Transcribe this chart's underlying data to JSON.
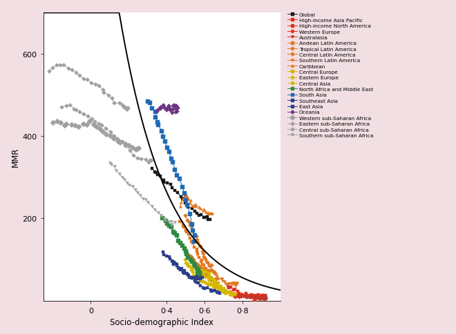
{
  "title": "",
  "xlabel": "Socio-demographic Index",
  "ylabel": "MMR",
  "xlim": [
    -0.25,
    1.0
  ],
  "ylim": [
    0,
    700
  ],
  "yticks": [
    200,
    400,
    600
  ],
  "xticks": [
    0.0,
    0.4,
    0.6,
    0.8
  ],
  "xtick_labels": [
    "0",
    "0·4",
    "0·6",
    "0·8"
  ],
  "background_color": "#f2dfe3",
  "plot_background": "#ffffff",
  "curve_A": 3200,
  "curve_k": 5.5,
  "curve_x0": -0.25,
  "regions": {
    "Global": {
      "color": "#1a1a1a",
      "marker": "s",
      "ms": 3.5,
      "sdi": [
        0.325,
        0.335,
        0.345,
        0.355,
        0.368,
        0.38,
        0.392,
        0.405,
        0.418,
        0.432,
        0.445,
        0.458,
        0.472,
        0.486,
        0.5,
        0.515,
        0.528,
        0.542,
        0.556,
        0.568,
        0.58,
        0.592,
        0.602,
        0.612,
        0.622,
        0.63
      ],
      "mmr": [
        320,
        316,
        312,
        308,
        303,
        298,
        292,
        287,
        281,
        275,
        268,
        261,
        254,
        247,
        239,
        231,
        224,
        217,
        211,
        207,
        204,
        202,
        201,
        200,
        200,
        200
      ]
    },
    "High-income Asia Pacific": {
      "color": "#e03020",
      "marker": "s",
      "ms": 3,
      "sdi": [
        0.718,
        0.728,
        0.738,
        0.748,
        0.758,
        0.768,
        0.778,
        0.788,
        0.798,
        0.808,
        0.818,
        0.828,
        0.838,
        0.848,
        0.858,
        0.868,
        0.878,
        0.888,
        0.898,
        0.908,
        0.915,
        0.92,
        0.922,
        0.922,
        0.922,
        0.922
      ],
      "mmr": [
        38,
        34,
        30,
        27,
        24,
        21,
        19,
        17,
        15,
        14,
        13,
        12,
        11,
        10,
        9,
        9,
        8,
        8,
        8,
        8,
        8,
        8,
        8,
        8,
        8,
        8
      ]
    },
    "High-income North America": {
      "color": "#e03020",
      "marker": "s",
      "ms": 3,
      "sdi": [
        0.762,
        0.772,
        0.779,
        0.786,
        0.793,
        0.8,
        0.808,
        0.815,
        0.822,
        0.829,
        0.836,
        0.843,
        0.85,
        0.857,
        0.864,
        0.871,
        0.878,
        0.885,
        0.892,
        0.899,
        0.905,
        0.91,
        0.912,
        0.912,
        0.912,
        0.912
      ],
      "mmr": [
        14,
        13,
        13,
        13,
        13,
        13,
        12,
        12,
        12,
        12,
        12,
        12,
        12,
        12,
        12,
        12,
        12,
        12,
        12,
        12,
        12,
        12,
        12,
        12,
        12,
        12
      ]
    },
    "Western Europe": {
      "color": "#e03020",
      "marker": "D",
      "ms": 3,
      "sdi": [
        0.732,
        0.742,
        0.752,
        0.762,
        0.772,
        0.782,
        0.792,
        0.802,
        0.812,
        0.822,
        0.832,
        0.842,
        0.852,
        0.862,
        0.872,
        0.882,
        0.892,
        0.9,
        0.908,
        0.912,
        0.915,
        0.916,
        0.916,
        0.916,
        0.916,
        0.916
      ],
      "mmr": [
        18,
        16,
        15,
        14,
        13,
        12,
        11,
        11,
        10,
        10,
        9,
        9,
        8,
        8,
        7,
        7,
        7,
        7,
        7,
        7,
        7,
        7,
        7,
        7,
        7,
        7
      ]
    },
    "Australasia": {
      "color": "#c0392b",
      "marker": "v",
      "ms": 3,
      "sdi": [
        0.782,
        0.792,
        0.802,
        0.812,
        0.82,
        0.828,
        0.836,
        0.844,
        0.852,
        0.86,
        0.868,
        0.876,
        0.884,
        0.89,
        0.896,
        0.9,
        0.904,
        0.908,
        0.912,
        0.916,
        0.918,
        0.92,
        0.92,
        0.92,
        0.92,
        0.92
      ],
      "mmr": [
        10,
        10,
        9,
        9,
        9,
        8,
        8,
        8,
        8,
        7,
        7,
        7,
        7,
        7,
        7,
        6,
        6,
        6,
        6,
        6,
        6,
        6,
        6,
        6,
        6,
        6
      ]
    },
    "Andean Latin America": {
      "color": "#e07820",
      "marker": "s",
      "ms": 3,
      "sdi": [
        0.47,
        0.478,
        0.486,
        0.493,
        0.5,
        0.507,
        0.514,
        0.521,
        0.528,
        0.535,
        0.542,
        0.549,
        0.556,
        0.562,
        0.568,
        0.574,
        0.58,
        0.586,
        0.592,
        0.598,
        0.604,
        0.61,
        0.616,
        0.622,
        0.626,
        0.628
      ],
      "mmr": [
        195,
        190,
        184,
        178,
        172,
        166,
        160,
        154,
        148,
        142,
        136,
        130,
        124,
        118,
        112,
        106,
        100,
        94,
        88,
        83,
        79,
        76,
        73,
        71,
        70,
        70
      ]
    },
    "Tropical Latin America": {
      "color": "#e07820",
      "marker": "D",
      "ms": 3,
      "sdi": [
        0.5,
        0.508,
        0.516,
        0.524,
        0.532,
        0.54,
        0.548,
        0.555,
        0.562,
        0.569,
        0.576,
        0.582,
        0.588,
        0.594,
        0.6,
        0.606,
        0.612,
        0.618,
        0.624,
        0.63,
        0.636,
        0.642,
        0.646,
        0.648,
        0.65,
        0.65
      ],
      "mmr": [
        205,
        198,
        192,
        185,
        178,
        170,
        163,
        156,
        149,
        142,
        135,
        128,
        121,
        115,
        109,
        103,
        97,
        92,
        87,
        82,
        78,
        74,
        71,
        69,
        68,
        68
      ]
    },
    "Central Latin America": {
      "color": "#e07820",
      "marker": "D",
      "ms": 3,
      "sdi": [
        0.522,
        0.53,
        0.538,
        0.546,
        0.554,
        0.562,
        0.569,
        0.576,
        0.583,
        0.59,
        0.597,
        0.603,
        0.609,
        0.615,
        0.621,
        0.627,
        0.633,
        0.638,
        0.643,
        0.647,
        0.65,
        0.652,
        0.654,
        0.655,
        0.656,
        0.656
      ],
      "mmr": [
        108,
        104,
        100,
        96,
        93,
        89,
        86,
        82,
        78,
        75,
        71,
        68,
        65,
        62,
        59,
        56,
        54,
        52,
        51,
        50,
        50,
        50,
        50,
        50,
        50,
        50
      ]
    },
    "Southern Latin America": {
      "color": "#e07820",
      "marker": "v",
      "ms": 3,
      "sdi": [
        0.648,
        0.656,
        0.664,
        0.671,
        0.678,
        0.685,
        0.692,
        0.699,
        0.706,
        0.712,
        0.718,
        0.724,
        0.73,
        0.736,
        0.741,
        0.746,
        0.75,
        0.754,
        0.757,
        0.76,
        0.762,
        0.764,
        0.765,
        0.766,
        0.766,
        0.766
      ],
      "mmr": [
        68,
        64,
        61,
        58,
        55,
        52,
        50,
        48,
        46,
        44,
        43,
        42,
        42,
        41,
        41,
        40,
        40,
        40,
        40,
        40,
        40,
        40,
        40,
        40,
        40,
        40
      ]
    },
    "Caribbean": {
      "color": "#e07820",
      "marker": "^",
      "ms": 3,
      "sdi": [
        0.468,
        0.474,
        0.48,
        0.486,
        0.492,
        0.498,
        0.504,
        0.51,
        0.516,
        0.523,
        0.53,
        0.537,
        0.544,
        0.552,
        0.56,
        0.568,
        0.576,
        0.585,
        0.594,
        0.603,
        0.612,
        0.62,
        0.628,
        0.635,
        0.64,
        0.642
      ],
      "mmr": [
        232,
        238,
        244,
        250,
        255,
        257,
        255,
        252,
        248,
        242,
        235,
        228,
        232,
        236,
        232,
        228,
        224,
        220,
        218,
        216,
        214,
        213,
        212,
        211,
        211,
        211
      ]
    },
    "Central Europe": {
      "color": "#d4b800",
      "marker": "s",
      "ms": 3,
      "sdi": [
        0.598,
        0.608,
        0.618,
        0.627,
        0.636,
        0.645,
        0.654,
        0.662,
        0.67,
        0.678,
        0.686,
        0.694,
        0.702,
        0.71,
        0.718,
        0.725,
        0.731,
        0.737,
        0.742,
        0.746,
        0.75,
        0.752,
        0.754,
        0.755,
        0.756,
        0.756
      ],
      "mmr": [
        78,
        72,
        67,
        62,
        57,
        52,
        48,
        44,
        40,
        36,
        33,
        30,
        27,
        24,
        21,
        19,
        17,
        16,
        15,
        15,
        15,
        15,
        15,
        15,
        15,
        15
      ]
    },
    "Eastern Europe": {
      "color": "#d4b800",
      "marker": "D",
      "ms": 3,
      "sdi": [
        0.558,
        0.568,
        0.577,
        0.586,
        0.595,
        0.604,
        0.612,
        0.62,
        0.628,
        0.636,
        0.643,
        0.65,
        0.657,
        0.664,
        0.671,
        0.678,
        0.684,
        0.69,
        0.695,
        0.7,
        0.704,
        0.708,
        0.712,
        0.714,
        0.716,
        0.716
      ],
      "mmr": [
        78,
        74,
        70,
        66,
        62,
        58,
        55,
        51,
        47,
        44,
        41,
        38,
        35,
        32,
        30,
        28,
        26,
        24,
        22,
        21,
        20,
        20,
        20,
        20,
        20,
        20
      ]
    },
    "Central Asia": {
      "color": "#d4b800",
      "marker": "D",
      "ms": 3,
      "sdi": [
        0.498,
        0.504,
        0.51,
        0.516,
        0.522,
        0.528,
        0.534,
        0.54,
        0.546,
        0.553,
        0.56,
        0.568,
        0.576,
        0.584,
        0.592,
        0.602,
        0.612,
        0.622,
        0.632,
        0.641,
        0.648,
        0.654,
        0.658,
        0.661,
        0.663,
        0.663
      ],
      "mmr": [
        98,
        94,
        90,
        86,
        82,
        78,
        74,
        70,
        66,
        62,
        58,
        55,
        52,
        49,
        46,
        43,
        40,
        38,
        36,
        35,
        35,
        35,
        35,
        35,
        35,
        35
      ]
    },
    "North Africa and Middle East": {
      "color": "#2d8a40",
      "marker": "s",
      "ms": 4,
      "sdi": [
        0.382,
        0.392,
        0.402,
        0.413,
        0.424,
        0.434,
        0.444,
        0.454,
        0.464,
        0.473,
        0.482,
        0.491,
        0.5,
        0.509,
        0.518,
        0.527,
        0.536,
        0.544,
        0.552,
        0.558,
        0.563,
        0.567,
        0.57,
        0.572,
        0.574,
        0.574
      ],
      "mmr": [
        198,
        193,
        187,
        181,
        175,
        168,
        162,
        155,
        148,
        141,
        134,
        127,
        120,
        113,
        107,
        101,
        95,
        89,
        83,
        78,
        73,
        69,
        66,
        64,
        63,
        63
      ]
    },
    "South Asia": {
      "color": "#1e6bb5",
      "marker": "s",
      "ms": 4,
      "sdi": [
        0.302,
        0.312,
        0.322,
        0.332,
        0.342,
        0.352,
        0.362,
        0.372,
        0.382,
        0.393,
        0.404,
        0.414,
        0.424,
        0.434,
        0.444,
        0.456,
        0.468,
        0.48,
        0.49,
        0.5,
        0.51,
        0.52,
        0.53,
        0.538,
        0.544,
        0.548
      ],
      "mmr": [
        488,
        478,
        468,
        457,
        447,
        436,
        425,
        414,
        402,
        390,
        377,
        364,
        350,
        336,
        322,
        307,
        291,
        275,
        261,
        247,
        233,
        210,
        188,
        170,
        156,
        144
      ]
    },
    "Southeast Asia": {
      "color": "#2c3e8c",
      "marker": "s",
      "ms": 3,
      "sdi": [
        0.382,
        0.392,
        0.402,
        0.412,
        0.421,
        0.43,
        0.439,
        0.448,
        0.457,
        0.466,
        0.476,
        0.486,
        0.495,
        0.504,
        0.513,
        0.522,
        0.53,
        0.538,
        0.546,
        0.554,
        0.56,
        0.566,
        0.572,
        0.578,
        0.582,
        0.584
      ],
      "mmr": [
        118,
        113,
        108,
        103,
        99,
        95,
        91,
        87,
        83,
        79,
        75,
        71,
        68,
        65,
        62,
        59,
        57,
        55,
        56,
        57,
        56,
        55,
        55,
        54,
        54,
        54
      ]
    },
    "East Asia": {
      "color": "#2c3e8c",
      "marker": "s",
      "ms": 3,
      "sdi": [
        0.432,
        0.442,
        0.452,
        0.463,
        0.474,
        0.485,
        0.495,
        0.505,
        0.516,
        0.526,
        0.537,
        0.548,
        0.558,
        0.568,
        0.578,
        0.59,
        0.602,
        0.614,
        0.626,
        0.638,
        0.648,
        0.658,
        0.666,
        0.672,
        0.676,
        0.678
      ],
      "mmr": [
        98,
        93,
        88,
        83,
        79,
        74,
        70,
        65,
        61,
        56,
        52,
        48,
        44,
        40,
        37,
        34,
        31,
        28,
        26,
        24,
        23,
        22,
        22,
        22,
        22,
        22
      ]
    },
    "Oceania": {
      "color": "#6c3483",
      "marker": "D",
      "ms": 3,
      "sdi": [
        0.348,
        0.354,
        0.36,
        0.366,
        0.372,
        0.378,
        0.384,
        0.39,
        0.396,
        0.402,
        0.408,
        0.414,
        0.42,
        0.426,
        0.43,
        0.434,
        0.438,
        0.442,
        0.445,
        0.448,
        0.45,
        0.452,
        0.454,
        0.455,
        0.456,
        0.456
      ],
      "mmr": [
        460,
        465,
        470,
        468,
        472,
        476,
        472,
        466,
        462,
        468,
        474,
        470,
        462,
        458,
        466,
        472,
        476,
        472,
        468,
        472,
        474,
        472,
        468,
        464,
        462,
        470
      ]
    },
    "Western sub-Saharan Africa": {
      "color": "#a0a0a0",
      "marker": "D",
      "ms": 4,
      "sdi": [
        -0.198,
        -0.178,
        -0.158,
        -0.138,
        -0.118,
        -0.098,
        -0.078,
        -0.058,
        -0.04,
        -0.022,
        -0.004,
        0.014,
        0.032,
        0.05,
        0.068,
        0.086,
        0.104,
        0.122,
        0.142,
        0.162,
        0.182,
        0.202,
        0.222,
        0.24,
        0.252,
        0.258
      ],
      "mmr": [
        432,
        436,
        432,
        428,
        430,
        428,
        424,
        420,
        426,
        430,
        435,
        430,
        422,
        416,
        410,
        404,
        398,
        392,
        387,
        383,
        379,
        376,
        373,
        371,
        370,
        370
      ]
    },
    "Eastern sub-Saharan Africa": {
      "color": "#a0a0a0",
      "marker": "D",
      "ms": 3,
      "sdi": [
        -0.148,
        -0.128,
        -0.108,
        -0.09,
        -0.072,
        -0.054,
        -0.036,
        -0.018,
        0.002,
        0.022,
        0.042,
        0.062,
        0.082,
        0.102,
        0.122,
        0.144,
        0.166,
        0.186,
        0.208,
        0.228,
        0.248,
        0.268,
        0.288,
        0.304,
        0.314,
        0.318
      ],
      "mmr": [
        470,
        474,
        472,
        468,
        464,
        460,
        454,
        449,
        443,
        437,
        430,
        424,
        417,
        410,
        402,
        394,
        385,
        375,
        364,
        354,
        347,
        344,
        342,
        340,
        340,
        340
      ]
    },
    "Central sub-Saharan Africa": {
      "color": "#a0a0a0",
      "marker": "D",
      "ms": 3,
      "sdi": [
        -0.218,
        -0.198,
        -0.178,
        -0.158,
        -0.138,
        -0.118,
        -0.098,
        -0.078,
        -0.058,
        -0.038,
        -0.018,
        0.002,
        0.022,
        0.04,
        0.058,
        0.076,
        0.094,
        0.112,
        0.13,
        0.148,
        0.162,
        0.174,
        0.182,
        0.188,
        0.192,
        0.194
      ],
      "mmr": [
        558,
        565,
        570,
        574,
        572,
        566,
        559,
        553,
        548,
        543,
        538,
        532,
        526,
        520,
        513,
        506,
        499,
        492,
        486,
        480,
        475,
        471,
        468,
        466,
        465,
        465
      ]
    },
    "Southern sub-Saharan Africa": {
      "color": "#a0a0a0",
      "marker": "v",
      "ms": 3,
      "sdi": [
        0.102,
        0.114,
        0.126,
        0.138,
        0.15,
        0.162,
        0.176,
        0.19,
        0.204,
        0.218,
        0.232,
        0.246,
        0.26,
        0.274,
        0.288,
        0.304,
        0.32,
        0.336,
        0.354,
        0.37,
        0.386,
        0.4,
        0.414,
        0.424,
        0.43,
        0.434
      ],
      "mmr": [
        338,
        330,
        323,
        316,
        308,
        301,
        294,
        288,
        282,
        276,
        270,
        263,
        256,
        250,
        243,
        236,
        229,
        222,
        214,
        207,
        200,
        195,
        192,
        191,
        190,
        190
      ]
    }
  },
  "region_order": [
    "Global",
    "High-income Asia Pacific",
    "High-income North America",
    "Western Europe",
    "Australasia",
    "Andean Latin America",
    "Tropical Latin America",
    "Central Latin America",
    "Southern Latin America",
    "Caribbean",
    "Central Europe",
    "Eastern Europe",
    "Central Asia",
    "North Africa and Middle East",
    "South Asia",
    "Southeast Asia",
    "East Asia",
    "Oceania",
    "Western sub-Saharan Africa",
    "Eastern sub-Saharan Africa",
    "Central sub-Saharan Africa",
    "Southern sub-Saharan Africa"
  ]
}
